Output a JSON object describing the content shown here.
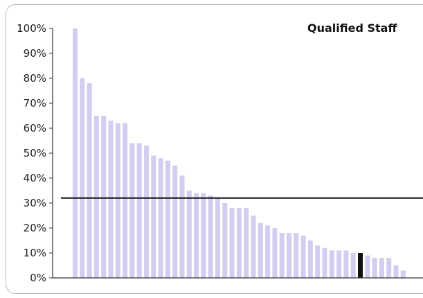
{
  "chart_data": {
    "type": "bar",
    "title": "Qualified Staff",
    "xlabel": "",
    "ylabel": "",
    "ylim": [
      0,
      100
    ],
    "yticks": [
      0,
      10,
      20,
      30,
      40,
      50,
      60,
      70,
      80,
      90,
      100
    ],
    "ytick_labels": [
      "0%",
      "10%",
      "20%",
      "30%",
      "40%",
      "50%",
      "60%",
      "70%",
      "80%",
      "90%",
      "100%"
    ],
    "values": [
      100,
      80,
      78,
      65,
      65,
      63,
      62,
      62,
      54,
      54,
      53,
      49,
      48,
      47,
      45,
      41,
      35,
      34,
      34,
      33,
      32,
      30,
      28,
      28,
      28,
      25,
      22,
      21,
      20,
      18,
      18,
      18,
      17,
      15,
      13,
      12,
      11,
      11,
      11,
      10,
      10,
      9,
      8,
      8,
      8,
      5,
      3
    ],
    "highlight_index": 40,
    "reference_line": 32,
    "bar_color": "#d3cdf0",
    "highlight_color": "#111111",
    "line_color": "#111111",
    "grid": false
  }
}
